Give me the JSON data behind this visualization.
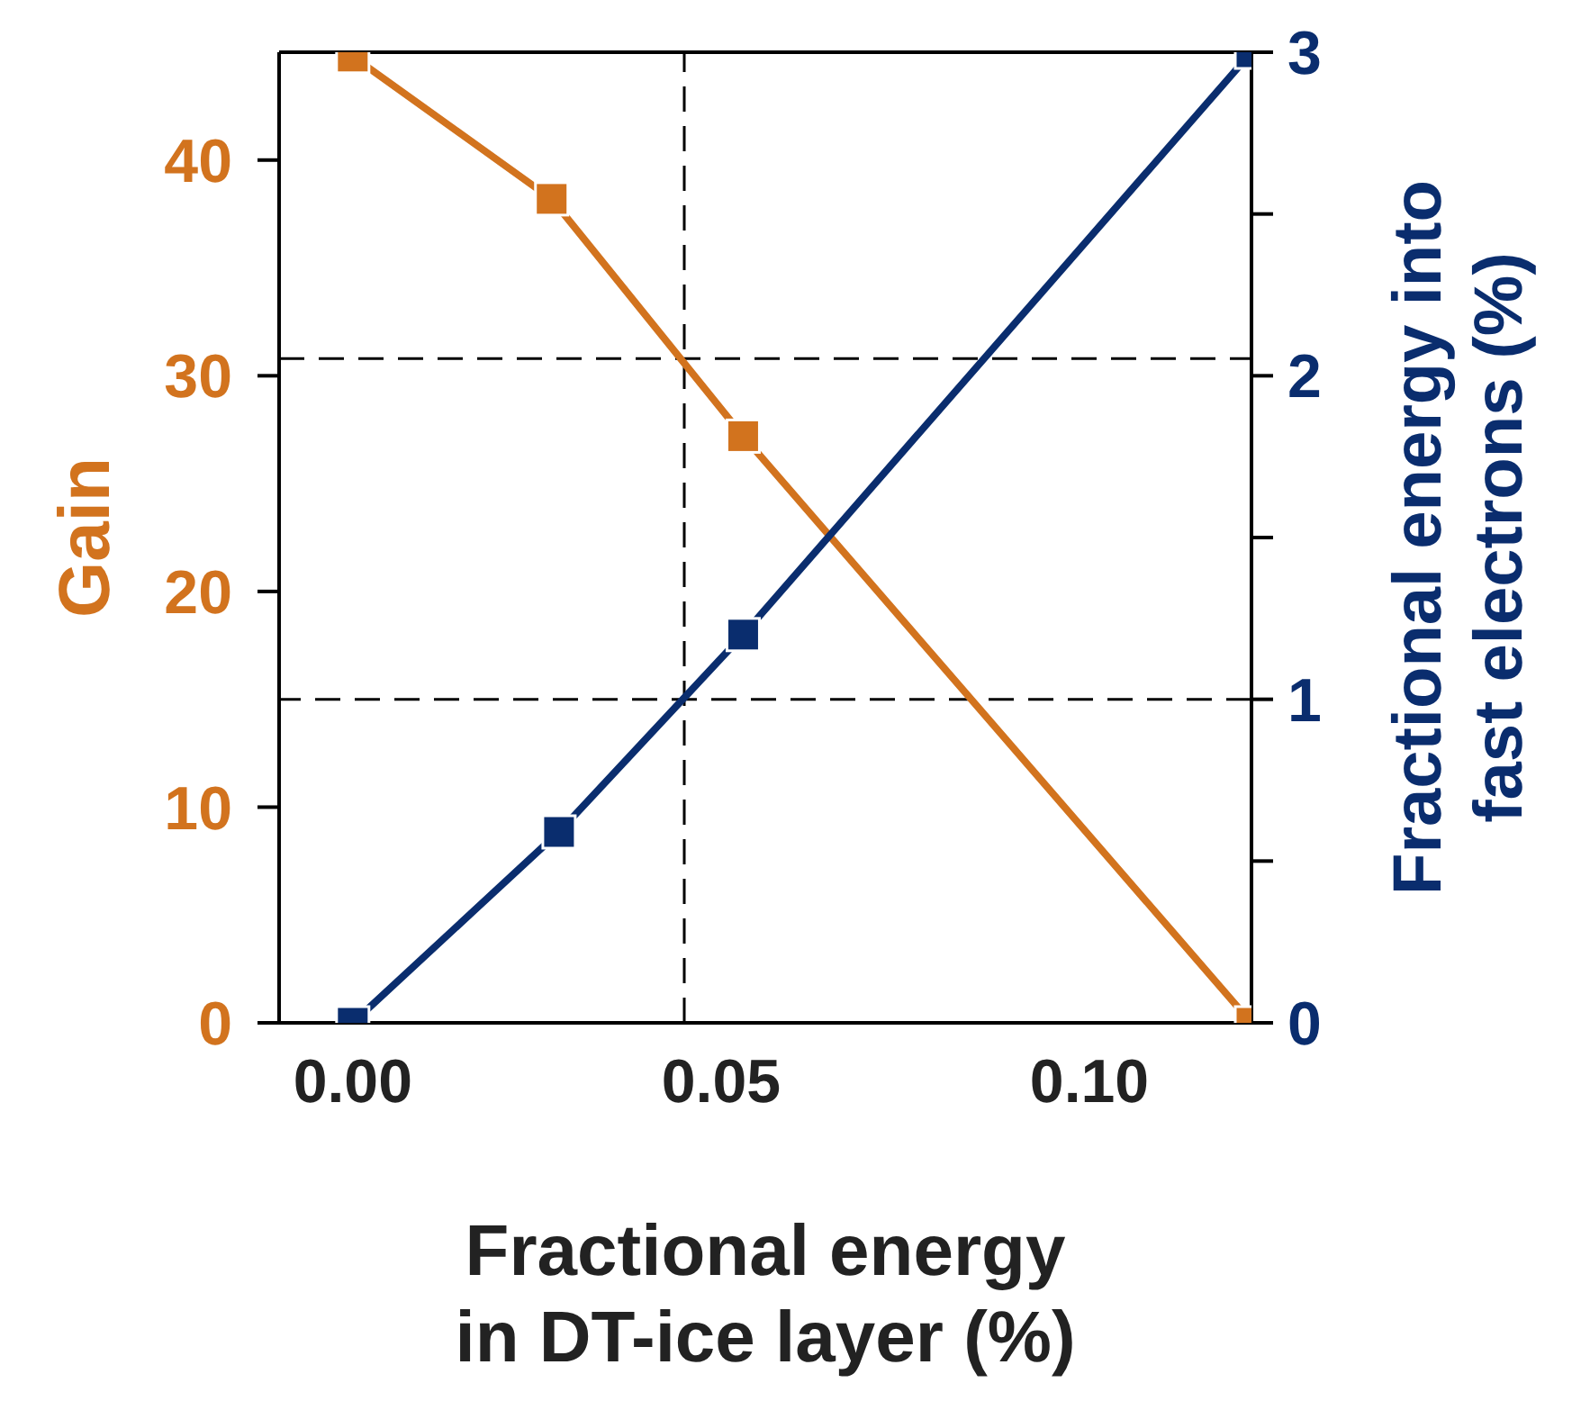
{
  "chart_data": {
    "type": "line",
    "xlabel": "Fractional energy in DT-ice layer (%)",
    "ylabel": "Gain",
    "y2label": "Fractional energy into fast electrons (%)",
    "series": [
      {
        "color": "#d2731e",
        "x": [
          0,
          0.027,
          0.053,
          0.122
        ],
        "values": [
          44.8,
          38.2,
          27.2,
          0
        ]
      },
      {
        "color": "#0a2d6e",
        "axis": "y2",
        "x": [
          0,
          0.028,
          0.053,
          0.122
        ],
        "values": [
          0,
          0.59,
          1.2,
          3
        ]
      }
    ],
    "xlim": [
      -0.01,
      0.122
    ],
    "xticks": [
      {
        "value": 0,
        "label": "0.00"
      },
      {
        "value": 0.05,
        "label": "0.05"
      },
      {
        "value": 0.1,
        "label": "0.10"
      }
    ],
    "ylim": [
      0,
      45
    ],
    "yticks": [
      0,
      10,
      20,
      30,
      40
    ],
    "y2lim": [
      0,
      3
    ],
    "y2ticks": [
      0,
      {
        "value": 0.5,
        "label": null
      },
      1,
      {
        "value": 1.5,
        "label": null
      },
      2,
      {
        "value": 2.5,
        "label": null
      },
      3
    ],
    "ref_lines": [
      {
        "axis": "y",
        "value": 30.8,
        "line_style": "dashed",
        "color": "#000000"
      },
      {
        "axis": "x",
        "value": 0.045,
        "line_style": "dashed",
        "color": "#000000"
      },
      {
        "axis": "y2",
        "value": 1,
        "line_style": "dashed",
        "color": "#000000"
      }
    ],
    "marker": "square",
    "line_style": "solid",
    "grid": false,
    "legend": false
  }
}
